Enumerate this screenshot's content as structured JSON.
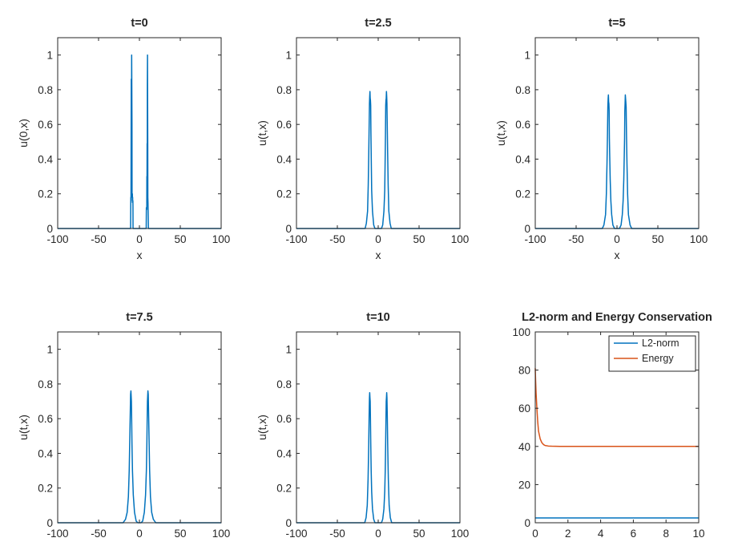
{
  "chart_data": [
    {
      "type": "line",
      "title": "t=0",
      "xlabel": "x",
      "ylabel": "u(0,x)",
      "xlim": [
        -100,
        100
      ],
      "ylim": [
        0,
        1.1
      ],
      "xticks": [
        "-100",
        "-50",
        "0",
        "50",
        "100"
      ],
      "yticks": [
        "0",
        "0.2",
        "0.4",
        "0.6",
        "0.8",
        "1"
      ],
      "grid": false,
      "series": [
        {
          "color": "#0072BD",
          "x": [
            -100,
            -10.8,
            -10.6,
            -10.5,
            -10.3,
            -10.2,
            -10.0,
            -9.9,
            -9.7,
            -9.5,
            -9.3,
            -9.1,
            -9.0,
            -8.6,
            -8.5,
            -8.3,
            -8.2,
            -8.0,
            -7.9,
            -7.8,
            8.3,
            8.4,
            8.5,
            9.0,
            9.1,
            9.3,
            9.4,
            9.6,
            9.7,
            9.9,
            10.0,
            10.2,
            10.3,
            10.5,
            10.6,
            11.0,
            100
          ],
          "y": [
            0,
            0,
            0.15,
            0.18,
            0.16,
            0.4,
            0.86,
            0.35,
            0.45,
            1.0,
            0.82,
            0.6,
            0.18,
            0.2,
            0.15,
            0.18,
            0.15,
            0.16,
            0.13,
            0,
            0,
            0.06,
            0.12,
            0.11,
            0.3,
            0.3,
            0.49,
            0.45,
            0.83,
            1.0,
            0.8,
            0.5,
            0.18,
            0.15,
            0.12,
            0,
            0
          ]
        }
      ]
    },
    {
      "type": "line",
      "title": "t=2.5",
      "xlabel": "x",
      "ylabel": "u(t,x)",
      "xlim": [
        -100,
        100
      ],
      "ylim": [
        0,
        1.1
      ],
      "xticks": [
        "-100",
        "-50",
        "0",
        "50",
        "100"
      ],
      "yticks": [
        "0",
        "0.2",
        "0.4",
        "0.6",
        "0.8",
        "1"
      ],
      "grid": false,
      "series": [
        {
          "color": "#0072BD",
          "x": [
            -100,
            -16,
            -14.5,
            -13,
            -12.2,
            -11.5,
            -11,
            -10.7,
            -10.4,
            -10.1,
            -9.8,
            -9.5,
            -9.2,
            -8.9,
            -8.5,
            -8,
            -7,
            -5.5,
            -4,
            4,
            5.5,
            7,
            8,
            8.5,
            8.9,
            9.2,
            9.5,
            9.8,
            10.1,
            10.4,
            10.7,
            11,
            11.5,
            12.2,
            13,
            14.5,
            16,
            100
          ],
          "y": [
            0,
            0,
            0.03,
            0.1,
            0.25,
            0.45,
            0.62,
            0.72,
            0.76,
            0.79,
            0.75,
            0.74,
            0.71,
            0.55,
            0.4,
            0.22,
            0.1,
            0.02,
            0,
            0,
            0.02,
            0.1,
            0.22,
            0.4,
            0.55,
            0.71,
            0.74,
            0.75,
            0.79,
            0.76,
            0.72,
            0.62,
            0.45,
            0.25,
            0.1,
            0.03,
            0,
            0
          ]
        }
      ]
    },
    {
      "type": "line",
      "title": "t=5",
      "xlabel": "x",
      "ylabel": "u(t,x)",
      "xlim": [
        -100,
        100
      ],
      "ylim": [
        0,
        1.1
      ],
      "xticks": [
        "-100",
        "-50",
        "0",
        "50",
        "100"
      ],
      "yticks": [
        "0",
        "0.2",
        "0.4",
        "0.6",
        "0.8",
        "1"
      ],
      "grid": false,
      "series": [
        {
          "color": "#0072BD",
          "x": [
            -100,
            -18,
            -16,
            -14,
            -13,
            -12.2,
            -11.6,
            -11.2,
            -10.8,
            -10.5,
            -10.2,
            -9.9,
            -9.6,
            -9.3,
            -8.9,
            -8.3,
            -7.5,
            -6.5,
            -5,
            -3,
            3,
            5,
            6.5,
            7.5,
            8.3,
            8.9,
            9.3,
            9.6,
            9.9,
            10.2,
            10.5,
            10.8,
            11.2,
            11.6,
            12.2,
            13,
            14,
            16,
            18,
            100
          ],
          "y": [
            0,
            0,
            0.02,
            0.08,
            0.2,
            0.38,
            0.55,
            0.7,
            0.75,
            0.77,
            0.73,
            0.72,
            0.68,
            0.52,
            0.42,
            0.28,
            0.16,
            0.08,
            0.02,
            0,
            0,
            0.02,
            0.08,
            0.16,
            0.28,
            0.42,
            0.52,
            0.68,
            0.72,
            0.77,
            0.75,
            0.73,
            0.7,
            0.55,
            0.38,
            0.2,
            0.08,
            0.02,
            0,
            0
          ]
        }
      ]
    },
    {
      "type": "line",
      "title": "t=7.5",
      "xlabel": "",
      "ylabel": "u(t,x)",
      "xlim": [
        -100,
        100
      ],
      "ylim": [
        0,
        1.1
      ],
      "xticks": [
        "-100",
        "-50",
        "0",
        "50",
        "100"
      ],
      "yticks": [
        "0",
        "0.2",
        "0.4",
        "0.6",
        "0.8",
        "1"
      ],
      "grid": false,
      "series": [
        {
          "color": "#0072BD",
          "x": [
            -100,
            -20,
            -17,
            -15,
            -13.5,
            -12.5,
            -11.8,
            -11.2,
            -10.8,
            -10.4,
            -10.1,
            -9.8,
            -9.5,
            -9.1,
            -8.5,
            -7.5,
            -6,
            -4,
            -2,
            2,
            4,
            6,
            7.5,
            8.5,
            9.1,
            9.5,
            9.8,
            10.1,
            10.4,
            10.8,
            11.2,
            11.8,
            12.5,
            13.5,
            15,
            17,
            20,
            100
          ],
          "y": [
            0,
            0,
            0.02,
            0.06,
            0.15,
            0.3,
            0.48,
            0.64,
            0.74,
            0.76,
            0.73,
            0.7,
            0.6,
            0.45,
            0.3,
            0.16,
            0.06,
            0.01,
            0,
            0,
            0.01,
            0.06,
            0.16,
            0.3,
            0.45,
            0.6,
            0.7,
            0.73,
            0.76,
            0.74,
            0.64,
            0.48,
            0.3,
            0.15,
            0.06,
            0.02,
            0,
            0
          ]
        }
      ]
    },
    {
      "type": "line",
      "title": "t=10",
      "xlabel": "",
      "ylabel": "u(t,x)",
      "xlim": [
        -100,
        100
      ],
      "ylim": [
        0,
        1.1
      ],
      "xticks": [
        "-100",
        "-50",
        "0",
        "50",
        "100"
      ],
      "yticks": [
        "0",
        "0.2",
        "0.4",
        "0.6",
        "0.8",
        "1"
      ],
      "grid": false,
      "series": [
        {
          "color": "#0072BD",
          "x": [
            -100,
            -16.5,
            -14.8,
            -13.4,
            -12.4,
            -11.6,
            -11.1,
            -10.7,
            -10.4,
            -10.1,
            -9.8,
            -9.5,
            -9.1,
            -8.6,
            -8,
            -7,
            -5.5,
            -4,
            4,
            5.5,
            7,
            8,
            8.6,
            9.1,
            9.5,
            9.8,
            10.1,
            10.4,
            10.7,
            11.1,
            11.6,
            12.4,
            13.4,
            14.8,
            16.5,
            100
          ],
          "y": [
            0,
            0,
            0.03,
            0.1,
            0.25,
            0.45,
            0.62,
            0.72,
            0.75,
            0.72,
            0.7,
            0.6,
            0.45,
            0.3,
            0.18,
            0.08,
            0.02,
            0,
            0,
            0.02,
            0.08,
            0.18,
            0.3,
            0.45,
            0.6,
            0.7,
            0.72,
            0.75,
            0.72,
            0.62,
            0.45,
            0.25,
            0.1,
            0.03,
            0,
            0
          ]
        }
      ]
    },
    {
      "type": "line",
      "title": "L2-norm and Energy Conservation",
      "xlabel": "",
      "ylabel": "",
      "xlim": [
        0,
        10
      ],
      "ylim": [
        0,
        100
      ],
      "xticks": [
        "0",
        "2",
        "4",
        "6",
        "8",
        "10"
      ],
      "yticks": [
        "0",
        "20",
        "40",
        "60",
        "80",
        "100"
      ],
      "grid": false,
      "legend_placement": "top-right",
      "series": [
        {
          "name": "L2-norm",
          "color": "#0072BD",
          "x": [
            0,
            10
          ],
          "y": [
            2.5,
            2.5
          ]
        },
        {
          "name": "Energy",
          "color": "#D95319",
          "x": [
            0,
            0.02,
            0.05,
            0.1,
            0.15,
            0.2,
            0.3,
            0.4,
            0.5,
            0.6,
            0.8,
            1.0,
            1.5,
            2,
            10
          ],
          "y": [
            81,
            75,
            68,
            60,
            53,
            48,
            44,
            42,
            41,
            40.5,
            40.2,
            40.1,
            40,
            40,
            40
          ]
        }
      ]
    }
  ]
}
